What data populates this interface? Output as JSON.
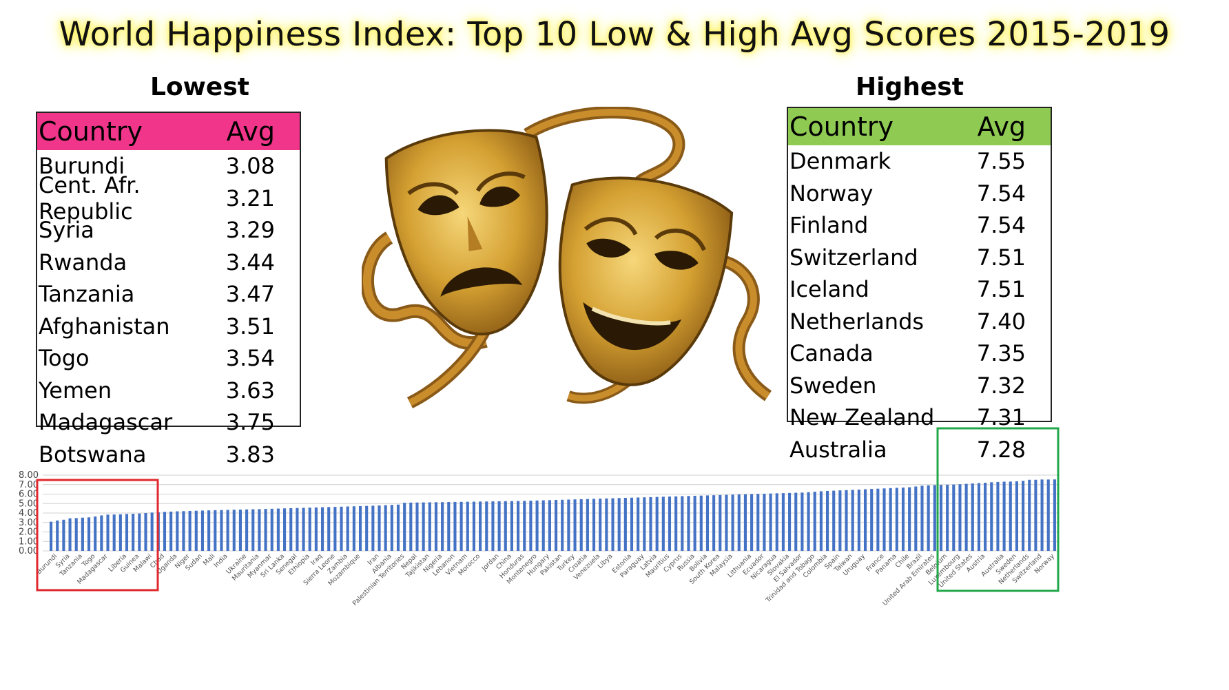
{
  "title": "World Happiness Index:  Top 10 Low & High Avg Scores 2015-2019",
  "lowest": {
    "heading": "Lowest",
    "col_country": "Country",
    "col_avg": "Avg",
    "header_color": "#f0358b",
    "rows": [
      {
        "country": "Burundi",
        "avg": "3.08"
      },
      {
        "country": "Cent. Afr. Republic",
        "avg": "3.21"
      },
      {
        "country": "Syria",
        "avg": "3.29"
      },
      {
        "country": "Rwanda",
        "avg": "3.44"
      },
      {
        "country": "Tanzania",
        "avg": "3.47"
      },
      {
        "country": "Afghanistan",
        "avg": "3.51"
      },
      {
        "country": "Togo",
        "avg": "3.54"
      },
      {
        "country": "Yemen",
        "avg": "3.63"
      },
      {
        "country": "Madagascar",
        "avg": "3.75"
      },
      {
        "country": "Botswana",
        "avg": "3.83"
      }
    ]
  },
  "highest": {
    "heading": "Highest",
    "col_country": "Country",
    "col_avg": "Avg",
    "header_color": "#8fcb52",
    "rows": [
      {
        "country": "Denmark",
        "avg": "7.55"
      },
      {
        "country": "Norway",
        "avg": "7.54"
      },
      {
        "country": "Finland",
        "avg": "7.54"
      },
      {
        "country": "Switzerland",
        "avg": "7.51"
      },
      {
        "country": "Iceland",
        "avg": "7.51"
      },
      {
        "country": "Netherlands",
        "avg": "7.40"
      },
      {
        "country": "Canada",
        "avg": "7.35"
      },
      {
        "country": "Sweden",
        "avg": "7.32"
      },
      {
        "country": "New Zealand",
        "avg": "7.31"
      },
      {
        "country": "Australia",
        "avg": "7.28"
      }
    ]
  },
  "image": {
    "name": "comedy-tragedy-masks"
  },
  "chart_data": {
    "type": "bar",
    "bar_color": "#4472c4",
    "ylim": [
      0,
      8
    ],
    "yticks": [
      "0.00",
      "1.00",
      "2.00",
      "3.00",
      "4.00",
      "5.00",
      "6.00",
      "7.00",
      "8.00"
    ],
    "grid": true,
    "n_bars": 158,
    "values": [
      3.08,
      3.21,
      3.29,
      3.44,
      3.47,
      3.51,
      3.54,
      3.63,
      3.75,
      3.83,
      3.84,
      3.86,
      3.9,
      3.92,
      3.95,
      4.0,
      4.05,
      4.08,
      4.12,
      4.15,
      4.18,
      4.2,
      4.22,
      4.24,
      4.26,
      4.28,
      4.3,
      4.31,
      4.33,
      4.35,
      4.36,
      4.38,
      4.4,
      4.41,
      4.43,
      4.45,
      4.47,
      4.49,
      4.51,
      4.53,
      4.55,
      4.57,
      4.59,
      4.61,
      4.63,
      4.65,
      4.67,
      4.69,
      4.71,
      4.73,
      4.75,
      4.77,
      4.8,
      4.83,
      4.86,
      4.89,
      5.08,
      5.1,
      5.11,
      5.12,
      5.13,
      5.14,
      5.15,
      5.16,
      5.17,
      5.18,
      5.19,
      5.2,
      5.21,
      5.22,
      5.23,
      5.24,
      5.25,
      5.26,
      5.27,
      5.28,
      5.3,
      5.32,
      5.34,
      5.36,
      5.38,
      5.4,
      5.42,
      5.44,
      5.46,
      5.48,
      5.5,
      5.52,
      5.54,
      5.56,
      5.58,
      5.6,
      5.62,
      5.64,
      5.66,
      5.68,
      5.7,
      5.72,
      5.74,
      5.76,
      5.78,
      5.8,
      5.82,
      5.84,
      5.86,
      5.88,
      5.9,
      5.92,
      5.94,
      5.96,
      5.98,
      6.0,
      6.02,
      6.04,
      6.06,
      6.08,
      6.1,
      6.12,
      6.14,
      6.16,
      6.2,
      6.25,
      6.3,
      6.33,
      6.36,
      6.39,
      6.42,
      6.45,
      6.48,
      6.51,
      6.54,
      6.57,
      6.6,
      6.63,
      6.66,
      6.69,
      6.72,
      6.8,
      6.88,
      6.92,
      6.95,
      6.97,
      6.99,
      7.01,
      7.04,
      7.08,
      7.12,
      7.16,
      7.2,
      7.25,
      7.28,
      7.31,
      7.32,
      7.35,
      7.4,
      7.51,
      7.51,
      7.54,
      7.54,
      7.55
    ],
    "categories_visible": [
      "Burundi",
      "Syria",
      "Tanzania",
      "Togo",
      "Madagascar",
      "Liberia",
      "Guinea",
      "Malawi",
      "Chad",
      "Uganda",
      "Niger",
      "Sudan",
      "Mali",
      "India",
      "Ukraine",
      "Mauritania",
      "Myanmar",
      "Sri Lanka",
      "Senegal",
      "Ethiopia",
      "Iraq",
      "Sierra Leone",
      "Zambia",
      "Mozambique",
      "Iran",
      "Albania",
      "Palestinian Territories",
      "Nepal",
      "Tajikistan",
      "Nigeria",
      "Lebanon",
      "Vietnam",
      "Morocco",
      "Jordan",
      "China",
      "Honduras",
      "Montenegro",
      "Hungary",
      "Pakistan",
      "Turkey",
      "Croatia",
      "Venezuela",
      "Libya",
      "Estonia",
      "Paraguay",
      "Latvia",
      "Mauritius",
      "Cyprus",
      "Russia",
      "Bolivia",
      "South Korea",
      "Malaysia",
      "Lithuania",
      "Ecuador",
      "Nicaragua",
      "Slovakia",
      "El Salvador",
      "Trinidad and Tobago",
      "Colombia",
      "Spain",
      "Taiwan",
      "Uruguay",
      "France",
      "Panama",
      "Chile",
      "Brazil",
      "United Arab Emirates",
      "Belgium",
      "Luxembourg",
      "United States",
      "Austria",
      "Australia",
      "Sweden",
      "Netherlands",
      "Switzerland",
      "Norway"
    ],
    "highlight_low_color": "#e0282e",
    "highlight_high_color": "#22a84a"
  }
}
